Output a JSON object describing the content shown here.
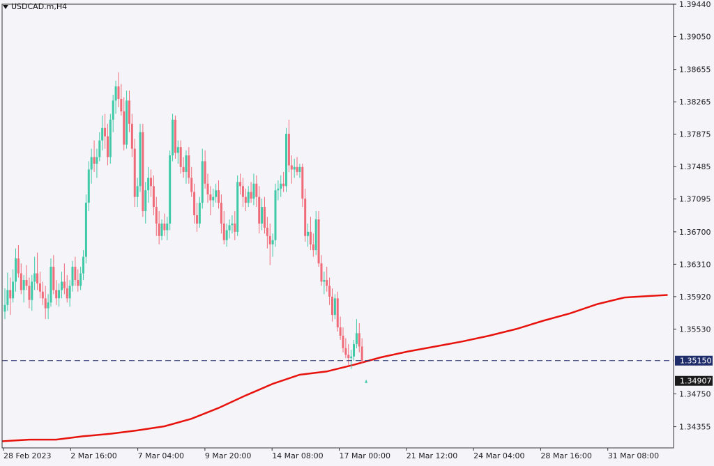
{
  "symbol": "USDCAD.m,H4",
  "colors": {
    "background": "#f4f4f9",
    "bull": "#3ec9a7",
    "bear": "#f06b78",
    "ma_line": "#e8120c",
    "price_line": "#1f2d6b",
    "current_price_tag": "#1f2d6b"
  },
  "chart_data": {
    "type": "candlestick",
    "y_ticks": [
      "1.39440",
      "1.39050",
      "1.38655",
      "1.38265",
      "1.37875",
      "1.37485",
      "1.37095",
      "1.36700",
      "1.36310",
      "1.35920",
      "1.35530",
      "1.34750",
      "1.34355"
    ],
    "ylim": [
      1.341,
      1.3944
    ],
    "x_ticks": [
      "28 Feb 2023",
      "2 Mar 16:00",
      "7 Mar 04:00",
      "9 Mar 20:00",
      "14 Mar 08:00",
      "17 Mar 00:00",
      "21 Mar 12:00",
      "24 Mar 04:00",
      "28 Mar 16:00",
      "31 Mar 08:00"
    ],
    "horizontal_line": {
      "value": 1.3515,
      "label": "1.35150"
    },
    "current_price": {
      "value": 1.34907,
      "label": "1.34907"
    },
    "moving_average": [
      [
        0,
        1.3418
      ],
      [
        10,
        1.342
      ],
      [
        20,
        1.342
      ],
      [
        30,
        1.3424
      ],
      [
        40,
        1.3427
      ],
      [
        50,
        1.3431
      ],
      [
        60,
        1.3436
      ],
      [
        70,
        1.3445
      ],
      [
        80,
        1.3458
      ],
      [
        90,
        1.3473
      ],
      [
        100,
        1.3487
      ],
      [
        110,
        1.3498
      ],
      [
        120,
        1.3502
      ],
      [
        130,
        1.351
      ],
      [
        140,
        1.3519
      ],
      [
        150,
        1.3526
      ],
      [
        160,
        1.3532
      ],
      [
        170,
        1.3538
      ],
      [
        180,
        1.3545
      ],
      [
        190,
        1.3553
      ],
      [
        200,
        1.3563
      ],
      [
        210,
        1.3572
      ],
      [
        220,
        1.3583
      ],
      [
        230,
        1.3591
      ],
      [
        240,
        1.3593
      ],
      [
        246,
        1.3594
      ]
    ],
    "candles": [
      [
        1.3574,
        1.3602,
        1.3565,
        1.3582
      ],
      [
        1.3582,
        1.3621,
        1.3575,
        1.36
      ],
      [
        1.36,
        1.3615,
        1.357,
        1.359
      ],
      [
        1.359,
        1.3625,
        1.3585,
        1.361
      ],
      [
        1.361,
        1.365,
        1.3598,
        1.3638
      ],
      [
        1.3638,
        1.3654,
        1.3615,
        1.362
      ],
      [
        1.362,
        1.3632,
        1.3595,
        1.36
      ],
      [
        1.36,
        1.3618,
        1.3585,
        1.3612
      ],
      [
        1.3612,
        1.363,
        1.36,
        1.3605
      ],
      [
        1.3605,
        1.3615,
        1.3578,
        1.3588
      ],
      [
        1.3588,
        1.3618,
        1.3575,
        1.361
      ],
      [
        1.361,
        1.364,
        1.36,
        1.362
      ],
      [
        1.362,
        1.3645,
        1.36,
        1.3608
      ],
      [
        1.3608,
        1.3622,
        1.359,
        1.3598
      ],
      [
        1.3598,
        1.361,
        1.3582,
        1.359
      ],
      [
        1.359,
        1.3605,
        1.3565,
        1.3578
      ],
      [
        1.3578,
        1.3595,
        1.3565,
        1.3585
      ],
      [
        1.3585,
        1.3638,
        1.358,
        1.3628
      ],
      [
        1.3628,
        1.3642,
        1.3595,
        1.36
      ],
      [
        1.36,
        1.3612,
        1.3582,
        1.359
      ],
      [
        1.359,
        1.3608,
        1.358,
        1.36
      ],
      [
        1.36,
        1.3622,
        1.359,
        1.361
      ],
      [
        1.361,
        1.3632,
        1.3595,
        1.3602
      ],
      [
        1.3602,
        1.3618,
        1.3585,
        1.359
      ],
      [
        1.359,
        1.3612,
        1.358,
        1.3605
      ],
      [
        1.3605,
        1.3635,
        1.3598,
        1.3628
      ],
      [
        1.3628,
        1.364,
        1.3605,
        1.3612
      ],
      [
        1.3612,
        1.3625,
        1.3598,
        1.3605
      ],
      [
        1.3605,
        1.3628,
        1.36,
        1.362
      ],
      [
        1.362,
        1.3648,
        1.3612,
        1.364
      ],
      [
        1.364,
        1.3715,
        1.3632,
        1.3705
      ],
      [
        1.3705,
        1.3755,
        1.3695,
        1.3745
      ],
      [
        1.3745,
        1.377,
        1.3728,
        1.376
      ],
      [
        1.376,
        1.378,
        1.3742,
        1.3752
      ],
      [
        1.3752,
        1.377,
        1.3735,
        1.376
      ],
      [
        1.376,
        1.379,
        1.3755,
        1.378
      ],
      [
        1.378,
        1.381,
        1.3768,
        1.3795
      ],
      [
        1.3795,
        1.3812,
        1.377,
        1.3785
      ],
      [
        1.3785,
        1.38,
        1.375,
        1.376
      ],
      [
        1.376,
        1.3812,
        1.3752,
        1.3805
      ],
      [
        1.3805,
        1.3835,
        1.379,
        1.3828
      ],
      [
        1.3828,
        1.3852,
        1.3812,
        1.3845
      ],
      [
        1.3845,
        1.3862,
        1.382,
        1.383
      ],
      [
        1.383,
        1.3848,
        1.381,
        1.3815
      ],
      [
        1.3815,
        1.3832,
        1.3768,
        1.3775
      ],
      [
        1.3775,
        1.384,
        1.377,
        1.3828
      ],
      [
        1.3828,
        1.384,
        1.379,
        1.38
      ],
      [
        1.38,
        1.3812,
        1.376,
        1.377
      ],
      [
        1.377,
        1.3782,
        1.37,
        1.3712
      ],
      [
        1.3712,
        1.3735,
        1.37,
        1.3725
      ],
      [
        1.3725,
        1.38,
        1.3718,
        1.379
      ],
      [
        1.379,
        1.38,
        1.3688,
        1.3695
      ],
      [
        1.3695,
        1.373,
        1.368,
        1.372
      ],
      [
        1.372,
        1.3748,
        1.3705,
        1.3735
      ],
      [
        1.3735,
        1.3745,
        1.3712,
        1.3725
      ],
      [
        1.3725,
        1.3738,
        1.369,
        1.37
      ],
      [
        1.37,
        1.3712,
        1.3665,
        1.368
      ],
      [
        1.368,
        1.3695,
        1.3655,
        1.3665
      ],
      [
        1.3665,
        1.3685,
        1.366,
        1.368
      ],
      [
        1.368,
        1.3692,
        1.3665,
        1.3672
      ],
      [
        1.3672,
        1.3688,
        1.366,
        1.368
      ],
      [
        1.368,
        1.3768,
        1.3672,
        1.3762
      ],
      [
        1.3762,
        1.3812,
        1.3755,
        1.3805
      ],
      [
        1.3805,
        1.381,
        1.3758,
        1.3765
      ],
      [
        1.3765,
        1.378,
        1.3752,
        1.3772
      ],
      [
        1.3772,
        1.378,
        1.374,
        1.3748
      ],
      [
        1.3748,
        1.376,
        1.3735,
        1.3742
      ],
      [
        1.3742,
        1.3768,
        1.3728,
        1.3762
      ],
      [
        1.3762,
        1.3772,
        1.3728,
        1.3735
      ],
      [
        1.3735,
        1.3748,
        1.3712,
        1.3718
      ],
      [
        1.3718,
        1.3728,
        1.368,
        1.369
      ],
      [
        1.369,
        1.3705,
        1.367,
        1.368
      ],
      [
        1.368,
        1.3712,
        1.3675,
        1.3705
      ],
      [
        1.3705,
        1.377,
        1.3698,
        1.3755
      ],
      [
        1.3755,
        1.3768,
        1.3722,
        1.3728
      ],
      [
        1.3728,
        1.374,
        1.3705,
        1.3715
      ],
      [
        1.3715,
        1.3725,
        1.369,
        1.3708
      ],
      [
        1.3708,
        1.3722,
        1.37,
        1.3712
      ],
      [
        1.3712,
        1.3728,
        1.3705,
        1.372
      ],
      [
        1.372,
        1.3732,
        1.3698,
        1.3705
      ],
      [
        1.3705,
        1.3715,
        1.3668,
        1.368
      ],
      [
        1.368,
        1.3695,
        1.3655,
        1.366
      ],
      [
        1.366,
        1.368,
        1.3652,
        1.3672
      ],
      [
        1.3672,
        1.3685,
        1.3662,
        1.3678
      ],
      [
        1.3678,
        1.369,
        1.3668,
        1.368
      ],
      [
        1.368,
        1.3695,
        1.366,
        1.367
      ],
      [
        1.367,
        1.3738,
        1.3665,
        1.373
      ],
      [
        1.373,
        1.374,
        1.3715,
        1.3725
      ],
      [
        1.3725,
        1.3735,
        1.37,
        1.3712
      ],
      [
        1.3712,
        1.3722,
        1.3695,
        1.3705
      ],
      [
        1.3705,
        1.3725,
        1.37,
        1.3718
      ],
      [
        1.3718,
        1.373,
        1.3705,
        1.371
      ],
      [
        1.371,
        1.374,
        1.3702,
        1.3728
      ],
      [
        1.3728,
        1.3738,
        1.37,
        1.3712
      ],
      [
        1.3712,
        1.3725,
        1.3668,
        1.368
      ],
      [
        1.368,
        1.371,
        1.3672,
        1.37
      ],
      [
        1.37,
        1.3712,
        1.3668,
        1.3675
      ],
      [
        1.3675,
        1.3688,
        1.365,
        1.3665
      ],
      [
        1.3665,
        1.368,
        1.363,
        1.3655
      ],
      [
        1.3655,
        1.3668,
        1.364,
        1.366
      ],
      [
        1.366,
        1.3728,
        1.3652,
        1.372
      ],
      [
        1.372,
        1.3732,
        1.3708,
        1.3722
      ],
      [
        1.3722,
        1.3738,
        1.3712,
        1.3728
      ],
      [
        1.3728,
        1.3742,
        1.3718,
        1.3725
      ],
      [
        1.3725,
        1.3795,
        1.3718,
        1.3788
      ],
      [
        1.3788,
        1.3805,
        1.3742,
        1.375
      ],
      [
        1.375,
        1.3762,
        1.3728,
        1.3745
      ],
      [
        1.3745,
        1.3758,
        1.3735,
        1.3748
      ],
      [
        1.3748,
        1.376,
        1.3738,
        1.3742
      ],
      [
        1.3742,
        1.3752,
        1.3735,
        1.3748
      ],
      [
        1.3748,
        1.3752,
        1.37,
        1.371
      ],
      [
        1.371,
        1.3722,
        1.3658,
        1.3665
      ],
      [
        1.3665,
        1.368,
        1.3652,
        1.367
      ],
      [
        1.367,
        1.3688,
        1.3648,
        1.3655
      ],
      [
        1.3655,
        1.3668,
        1.364,
        1.3648
      ],
      [
        1.3648,
        1.3695,
        1.3642,
        1.3685
      ],
      [
        1.3685,
        1.3695,
        1.3628,
        1.3632
      ],
      [
        1.3632,
        1.3642,
        1.3605,
        1.361
      ],
      [
        1.361,
        1.3622,
        1.3595,
        1.3612
      ],
      [
        1.3612,
        1.3628,
        1.3598,
        1.3605
      ],
      [
        1.3605,
        1.3615,
        1.3582,
        1.3592
      ],
      [
        1.3592,
        1.3602,
        1.3562,
        1.357
      ],
      [
        1.357,
        1.3595,
        1.3565,
        1.359
      ],
      [
        1.359,
        1.3598,
        1.355,
        1.3555
      ],
      [
        1.3555,
        1.3568,
        1.354,
        1.3545
      ],
      [
        1.3545,
        1.3555,
        1.3525,
        1.353
      ],
      [
        1.353,
        1.3542,
        1.3518,
        1.3522
      ],
      [
        1.3522,
        1.3535,
        1.351,
        1.3518
      ],
      [
        1.3518,
        1.3528,
        1.3505,
        1.352
      ],
      [
        1.352,
        1.354,
        1.3515,
        1.3535
      ],
      [
        1.3535,
        1.3565,
        1.353,
        1.3548
      ],
      [
        1.3548,
        1.356,
        1.3525,
        1.3532
      ],
      [
        1.3532,
        1.3542,
        1.3512,
        1.3515
      ]
    ]
  }
}
